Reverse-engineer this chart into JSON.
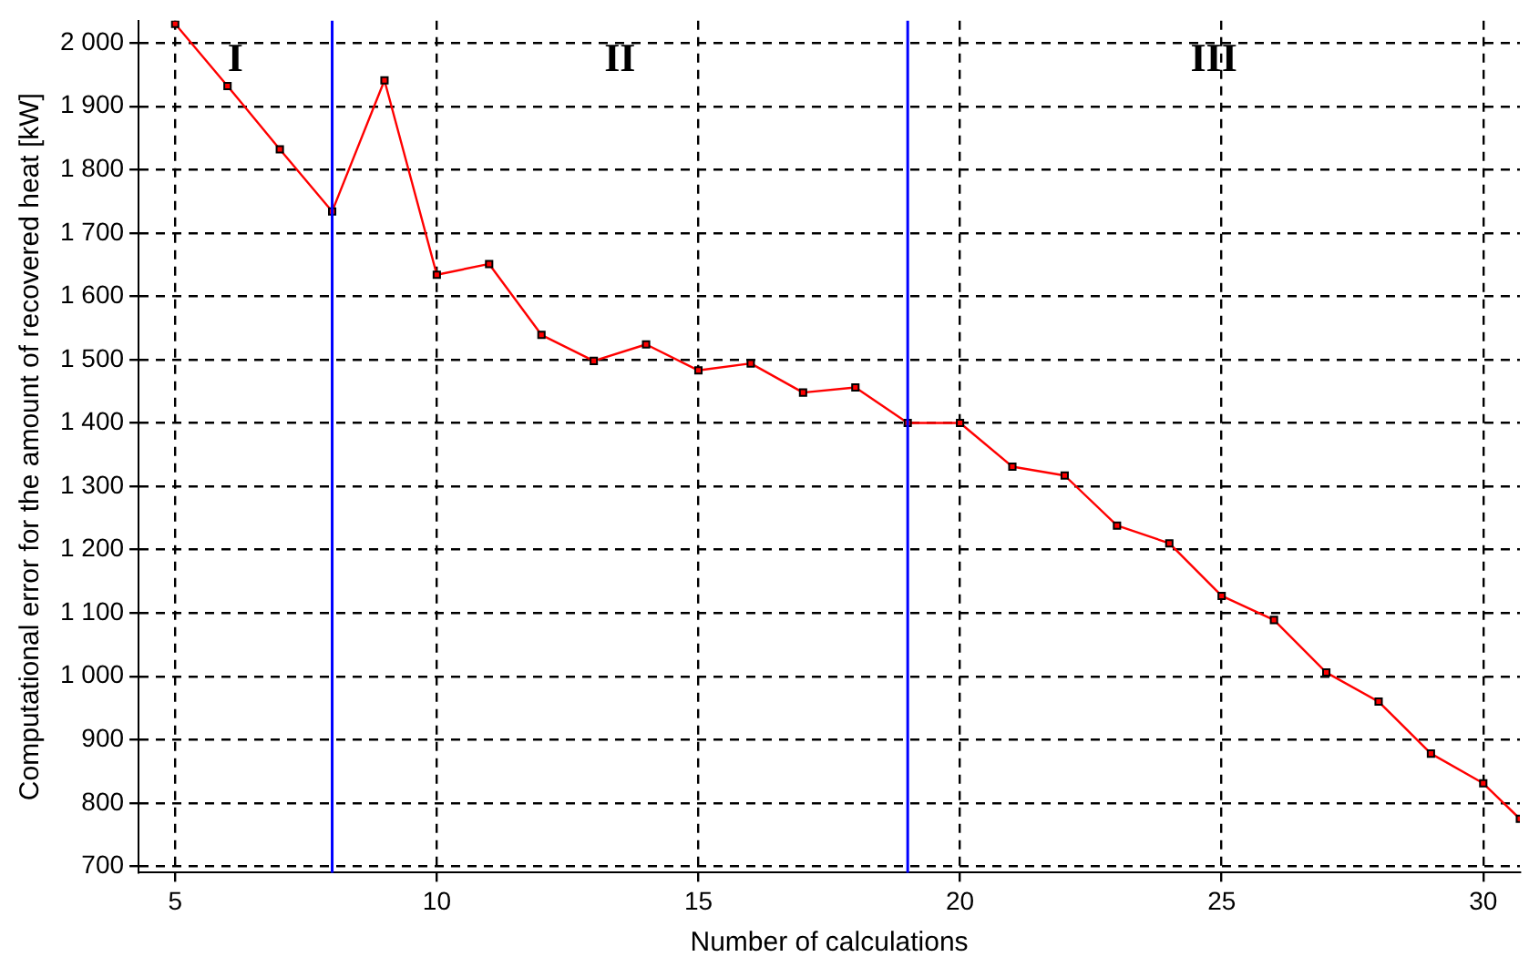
{
  "chart_data": {
    "type": "line",
    "xlabel": "Number of calculations",
    "ylabel": "Computational error for the amount of recovered heat [kW]",
    "x": [
      5,
      6,
      7,
      8,
      9,
      10,
      11,
      12,
      13,
      14,
      15,
      16,
      17,
      18,
      19,
      20,
      21,
      22,
      23,
      24,
      25,
      26,
      27,
      28,
      29,
      30,
      30.7
    ],
    "series": [
      {
        "color": "#ff0000",
        "values": [
          2030,
          1932,
          1832,
          1734,
          1941,
          1634,
          1651,
          1539,
          1498,
          1524,
          1483,
          1494,
          1448,
          1456,
          1400,
          1400,
          1331,
          1317,
          1238,
          1210,
          1127,
          1089,
          1006,
          960,
          878,
          831,
          775
        ]
      }
    ],
    "xlim": [
      4.3,
      30.7
    ],
    "ylim": [
      690,
      2035
    ],
    "xticks": [
      5,
      10,
      15,
      20,
      25,
      30
    ],
    "yticks": [
      {
        "value": 700,
        "label": "700"
      },
      {
        "value": 800,
        "label": "800"
      },
      {
        "value": 900,
        "label": "900"
      },
      {
        "value": 1000,
        "label": "1 000"
      },
      {
        "value": 1100,
        "label": "1 100"
      },
      {
        "value": 1200,
        "label": "1 200"
      },
      {
        "value": 1300,
        "label": "1 300"
      },
      {
        "value": 1400,
        "label": "1 400"
      },
      {
        "value": 1500,
        "label": "1 500"
      },
      {
        "value": 1600,
        "label": "1 600"
      },
      {
        "value": 1700,
        "label": "1 700"
      },
      {
        "value": 1800,
        "label": "1 800"
      },
      {
        "value": 1900,
        "label": "1 900"
      },
      {
        "value": 2000,
        "label": "2 000"
      }
    ],
    "ref_lines": [
      {
        "axis": "x",
        "value": 8,
        "color": "#0000ff"
      },
      {
        "axis": "x",
        "value": 19,
        "color": "#0000ff"
      }
    ],
    "annotations": [
      "I",
      "II",
      "III"
    ],
    "grid": true,
    "legend": false,
    "marker": "square",
    "line_style": "solid"
  }
}
